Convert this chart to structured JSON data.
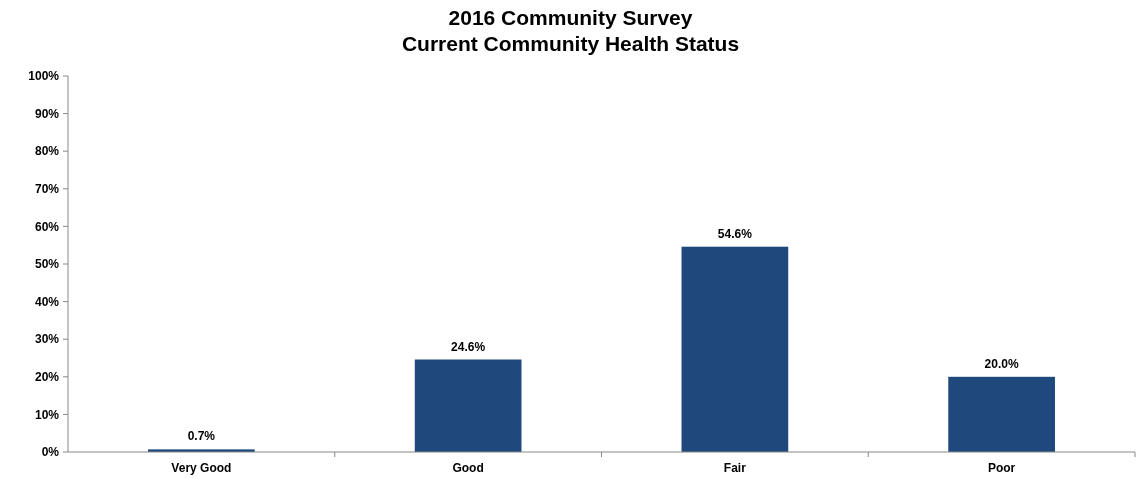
{
  "chart_data": {
    "type": "bar",
    "title": "2016 Community Survey",
    "subtitle": "Current Community Health Status",
    "categories": [
      "Very Good",
      "Good",
      "Fair",
      "Poor"
    ],
    "values": [
      0.7,
      24.6,
      54.6,
      20.0
    ],
    "value_labels": [
      "0.7%",
      "24.6%",
      "54.6%",
      "20.0%"
    ],
    "color": "#1f497d",
    "ylim": [
      0,
      100
    ],
    "yticks": [
      {
        "value": 0,
        "label": "0%"
      },
      {
        "value": 10,
        "label": "10%"
      },
      {
        "value": 20,
        "label": "20%"
      },
      {
        "value": 30,
        "label": "30%"
      },
      {
        "value": 40,
        "label": "40%"
      },
      {
        "value": 50,
        "label": "50%"
      },
      {
        "value": 60,
        "label": "60%"
      },
      {
        "value": 70,
        "label": "70%"
      },
      {
        "value": 80,
        "label": "80%"
      },
      {
        "value": 90,
        "label": "90%"
      },
      {
        "value": 100,
        "label": "100%"
      }
    ],
    "grid": false
  }
}
